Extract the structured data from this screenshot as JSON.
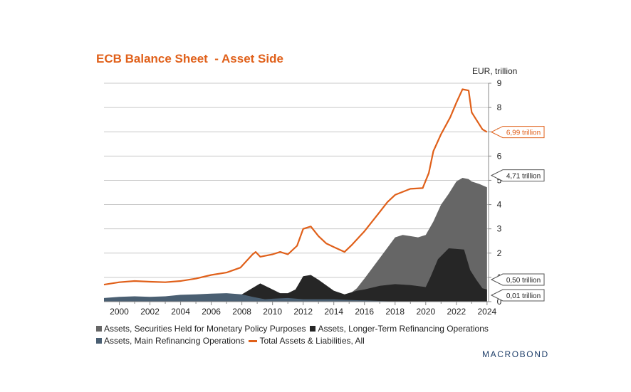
{
  "title": "ECB Balance Sheet  - Asset Side",
  "unit_label": "EUR, trillion",
  "brand": "MACROBOND",
  "colors": {
    "securities": "#666666",
    "ltro": "#262626",
    "mro": "#4a5f72",
    "total": "#e0601a",
    "grid": "#c8c8c8"
  },
  "chart_data": {
    "type": "area",
    "title": "ECB Balance Sheet  - Asset Side",
    "ylabel": "EUR, trillion",
    "xlim": [
      1999,
      2024.1
    ],
    "ylim": [
      0,
      9
    ],
    "x_ticks": [
      "2000",
      "2002",
      "2004",
      "2006",
      "2008",
      "2010",
      "2012",
      "2014",
      "2016",
      "2018",
      "2020",
      "2022",
      "2024"
    ],
    "y_ticks": [
      "0",
      "1",
      "2",
      "3",
      "4",
      "5",
      "6",
      "7",
      "8",
      "9"
    ],
    "grid": true,
    "legend_position": "bottom",
    "end_labels": [
      {
        "series": "Total Assets & Liabilities, All",
        "text": "6,99 trillion",
        "value": 6.99
      },
      {
        "series": "Assets, Securities Held for Monetary Policy Purposes",
        "text": "4,71 trillion",
        "value": 4.71
      },
      {
        "series": "Assets, Longer-Term Refinancing Operations",
        "text": "0,50 trillion",
        "value": 0.5
      },
      {
        "series": "Assets, Main Refinancing Operations",
        "text": "0,01 trillion",
        "value": 0.01
      }
    ],
    "series": [
      {
        "name": "Total Assets & Liabilities, All",
        "kind": "line",
        "points": [
          [
            1999.0,
            0.7
          ],
          [
            2000.0,
            0.8
          ],
          [
            2001.0,
            0.85
          ],
          [
            2002.0,
            0.82
          ],
          [
            2003.0,
            0.8
          ],
          [
            2004.0,
            0.85
          ],
          [
            2005.0,
            0.95
          ],
          [
            2006.0,
            1.1
          ],
          [
            2007.0,
            1.2
          ],
          [
            2007.9,
            1.4
          ],
          [
            2008.7,
            1.95
          ],
          [
            2008.9,
            2.05
          ],
          [
            2009.2,
            1.85
          ],
          [
            2010.0,
            1.95
          ],
          [
            2010.5,
            2.05
          ],
          [
            2011.0,
            1.95
          ],
          [
            2011.6,
            2.3
          ],
          [
            2012.0,
            3.0
          ],
          [
            2012.5,
            3.1
          ],
          [
            2013.0,
            2.7
          ],
          [
            2013.5,
            2.4
          ],
          [
            2014.0,
            2.25
          ],
          [
            2014.7,
            2.05
          ],
          [
            2015.2,
            2.35
          ],
          [
            2016.0,
            2.9
          ],
          [
            2017.0,
            3.7
          ],
          [
            2017.5,
            4.1
          ],
          [
            2018.0,
            4.4
          ],
          [
            2019.0,
            4.65
          ],
          [
            2019.8,
            4.68
          ],
          [
            2020.2,
            5.3
          ],
          [
            2020.5,
            6.2
          ],
          [
            2021.0,
            6.9
          ],
          [
            2021.6,
            7.6
          ],
          [
            2022.0,
            8.2
          ],
          [
            2022.4,
            8.75
          ],
          [
            2022.8,
            8.7
          ],
          [
            2023.0,
            7.8
          ],
          [
            2023.4,
            7.4
          ],
          [
            2023.7,
            7.1
          ],
          [
            2024.0,
            6.99
          ]
        ]
      },
      {
        "name": "Assets, Securities Held for Monetary Policy Purposes",
        "kind": "area",
        "points": [
          [
            2010.0,
            0.0
          ],
          [
            2010.5,
            0.06
          ],
          [
            2011.5,
            0.15
          ],
          [
            2012.0,
            0.25
          ],
          [
            2012.5,
            0.28
          ],
          [
            2013.0,
            0.27
          ],
          [
            2014.0,
            0.22
          ],
          [
            2014.7,
            0.2
          ],
          [
            2015.0,
            0.3
          ],
          [
            2015.5,
            0.55
          ],
          [
            2016.0,
            0.95
          ],
          [
            2017.0,
            1.8
          ],
          [
            2018.0,
            2.65
          ],
          [
            2018.5,
            2.75
          ],
          [
            2019.0,
            2.7
          ],
          [
            2019.5,
            2.65
          ],
          [
            2020.0,
            2.75
          ],
          [
            2020.5,
            3.3
          ],
          [
            2021.0,
            4.0
          ],
          [
            2021.5,
            4.45
          ],
          [
            2022.0,
            4.95
          ],
          [
            2022.4,
            5.1
          ],
          [
            2022.8,
            5.05
          ],
          [
            2023.0,
            4.95
          ],
          [
            2023.5,
            4.85
          ],
          [
            2024.0,
            4.71
          ]
        ]
      },
      {
        "name": "Assets, Longer-Term Refinancing Operations",
        "kind": "area",
        "points": [
          [
            1999.0,
            0.05
          ],
          [
            2001.0,
            0.06
          ],
          [
            2003.0,
            0.05
          ],
          [
            2005.0,
            0.07
          ],
          [
            2007.0,
            0.15
          ],
          [
            2008.0,
            0.3
          ],
          [
            2008.8,
            0.6
          ],
          [
            2009.2,
            0.75
          ],
          [
            2010.0,
            0.5
          ],
          [
            2010.5,
            0.35
          ],
          [
            2011.0,
            0.35
          ],
          [
            2011.5,
            0.5
          ],
          [
            2012.0,
            1.05
          ],
          [
            2012.5,
            1.1
          ],
          [
            2013.0,
            0.9
          ],
          [
            2014.0,
            0.45
          ],
          [
            2014.7,
            0.3
          ],
          [
            2015.5,
            0.45
          ],
          [
            2016.0,
            0.5
          ],
          [
            2017.0,
            0.65
          ],
          [
            2018.0,
            0.72
          ],
          [
            2019.0,
            0.68
          ],
          [
            2020.0,
            0.6
          ],
          [
            2020.3,
            1.0
          ],
          [
            2020.8,
            1.75
          ],
          [
            2021.5,
            2.2
          ],
          [
            2022.5,
            2.15
          ],
          [
            2022.9,
            1.3
          ],
          [
            2023.3,
            0.9
          ],
          [
            2023.7,
            0.55
          ],
          [
            2024.0,
            0.5
          ]
        ]
      },
      {
        "name": "Assets, Main Refinancing Operations",
        "kind": "area",
        "points": [
          [
            1999.0,
            0.15
          ],
          [
            2000.0,
            0.2
          ],
          [
            2001.0,
            0.22
          ],
          [
            2002.0,
            0.2
          ],
          [
            2003.0,
            0.22
          ],
          [
            2004.0,
            0.28
          ],
          [
            2005.0,
            0.3
          ],
          [
            2006.0,
            0.33
          ],
          [
            2007.0,
            0.35
          ],
          [
            2008.0,
            0.3
          ],
          [
            2008.7,
            0.2
          ],
          [
            2009.5,
            0.1
          ],
          [
            2010.0,
            0.12
          ],
          [
            2011.0,
            0.15
          ],
          [
            2012.0,
            0.1
          ],
          [
            2013.0,
            0.1
          ],
          [
            2014.0,
            0.1
          ],
          [
            2015.0,
            0.07
          ],
          [
            2016.0,
            0.05
          ],
          [
            2018.0,
            0.01
          ],
          [
            2024.0,
            0.01
          ]
        ]
      }
    ]
  },
  "legend": {
    "items": [
      {
        "label": "Assets, Securities Held for Monetary Policy Purposes",
        "kind": "box",
        "color": "#666666"
      },
      {
        "label": "Assets, Longer-Term Refinancing Operations",
        "kind": "box",
        "color": "#262626"
      },
      {
        "label": "Assets, Main Refinancing Operations",
        "kind": "box",
        "color": "#4a5f72"
      },
      {
        "label": "Total Assets & Liabilities, All",
        "kind": "line",
        "color": "#e0601a"
      }
    ]
  }
}
